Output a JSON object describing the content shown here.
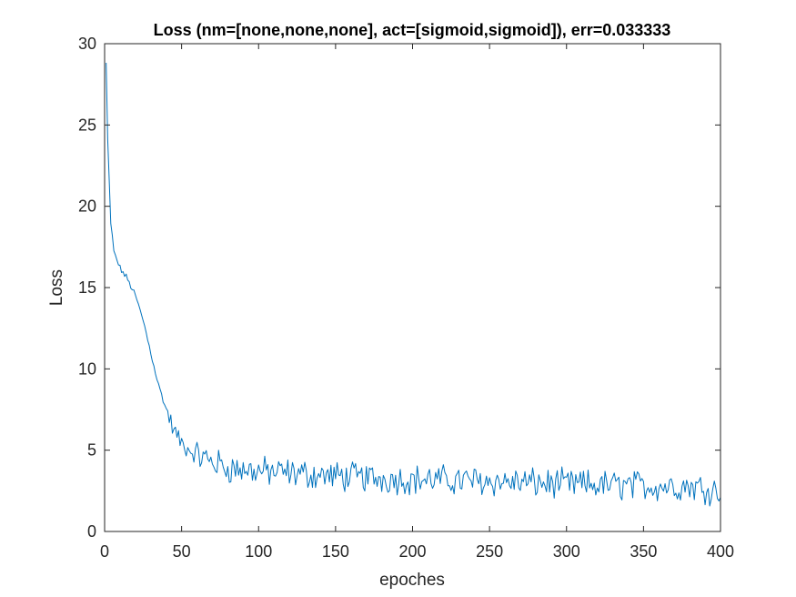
{
  "chart_data": {
    "type": "line",
    "title": "Loss (nm=[none,none,none], act=[sigmoid,sigmoid]), err=0.033333",
    "xlabel": "epoches",
    "ylabel": "Loss",
    "xlim": [
      0,
      400
    ],
    "ylim": [
      0,
      30
    ],
    "xticks": [
      0,
      50,
      100,
      150,
      200,
      250,
      300,
      350,
      400
    ],
    "yticks": [
      0,
      5,
      10,
      15,
      20,
      25,
      30
    ],
    "grid": false,
    "legend": "none",
    "colors": {
      "line": "#0072BD",
      "axes": "#262626",
      "title": "#000000"
    },
    "series": [
      {
        "key_points": {
          "x": [
            1,
            2,
            4,
            6,
            10,
            15,
            20,
            25,
            30,
            35,
            40,
            45,
            50,
            55,
            60,
            70,
            80,
            90,
            100,
            120,
            150,
            170,
            200,
            250,
            300,
            350,
            380,
            400
          ],
          "y": [
            28.8,
            24.0,
            19.0,
            17.2,
            16.2,
            15.5,
            14.5,
            13.0,
            11.0,
            9.0,
            7.5,
            6.2,
            5.4,
            5.0,
            4.7,
            4.3,
            3.9,
            3.8,
            3.7,
            3.6,
            3.4,
            3.3,
            3.2,
            3.1,
            2.9,
            2.8,
            2.8,
            2.5
          ]
        },
        "noise_amplitude": 0.55
      }
    ]
  }
}
